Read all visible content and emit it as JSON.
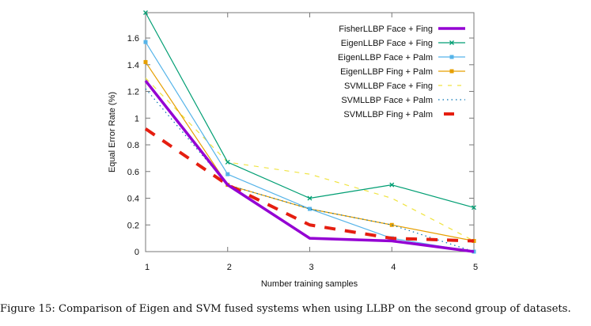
{
  "caption": "Figure 15: Comparison of Eigen and SVM fused systems when using LLBP on the second group of datasets.",
  "chart_data": {
    "type": "line",
    "title": "",
    "xlabel": "Number training samples",
    "ylabel": "Equal Error Rate (%)",
    "x": [
      1,
      2,
      3,
      4,
      5
    ],
    "xlim": [
      1,
      5
    ],
    "ylim": [
      0,
      1.79
    ],
    "xticks": [
      "1",
      "2",
      "3",
      "4",
      "5"
    ],
    "yticks": [
      "0",
      "0.2",
      "0.4",
      "0.6",
      "0.8",
      "1",
      "1.2",
      "1.4",
      "1.6"
    ],
    "ytick_values": [
      0,
      0.2,
      0.4,
      0.6,
      0.8,
      1.0,
      1.2,
      1.4,
      1.6
    ],
    "grid": false,
    "legend_position": "top-right",
    "series": [
      {
        "name": "FisherLLBP Face + Fing",
        "values": [
          1.28,
          0.5,
          0.1,
          0.08,
          0.0
        ],
        "color": "#9400d3",
        "style": "solid-thick",
        "marker": "none"
      },
      {
        "name": "EigenLLBP Face + Fing",
        "values": [
          1.79,
          0.67,
          0.4,
          0.5,
          0.33
        ],
        "color": "#009e73",
        "style": "solid",
        "marker": "cross"
      },
      {
        "name": "EigenLLBP Face + Palm",
        "values": [
          1.57,
          0.58,
          0.32,
          0.1,
          0.0
        ],
        "color": "#56b4e9",
        "style": "solid",
        "marker": "square"
      },
      {
        "name": "EigenLLBP Fing + Palm",
        "values": [
          1.42,
          0.5,
          0.32,
          0.2,
          0.08
        ],
        "color": "#e69f00",
        "style": "solid",
        "marker": "square"
      },
      {
        "name": "SVMLLBP Face + Fing",
        "values": [
          1.3,
          0.67,
          0.58,
          0.4,
          0.08
        ],
        "color": "#f0e442",
        "style": "dashed",
        "marker": "none"
      },
      {
        "name": "SVMLLBP Face + Palm",
        "values": [
          1.22,
          0.5,
          0.32,
          0.2,
          0.0
        ],
        "color": "#0072b2",
        "style": "dotted",
        "marker": "none"
      },
      {
        "name": "SVMLLBP Fing + Palm",
        "values": [
          0.92,
          0.5,
          0.2,
          0.1,
          0.08
        ],
        "color": "#e51e10",
        "style": "dashed-thick",
        "marker": "none"
      }
    ]
  }
}
